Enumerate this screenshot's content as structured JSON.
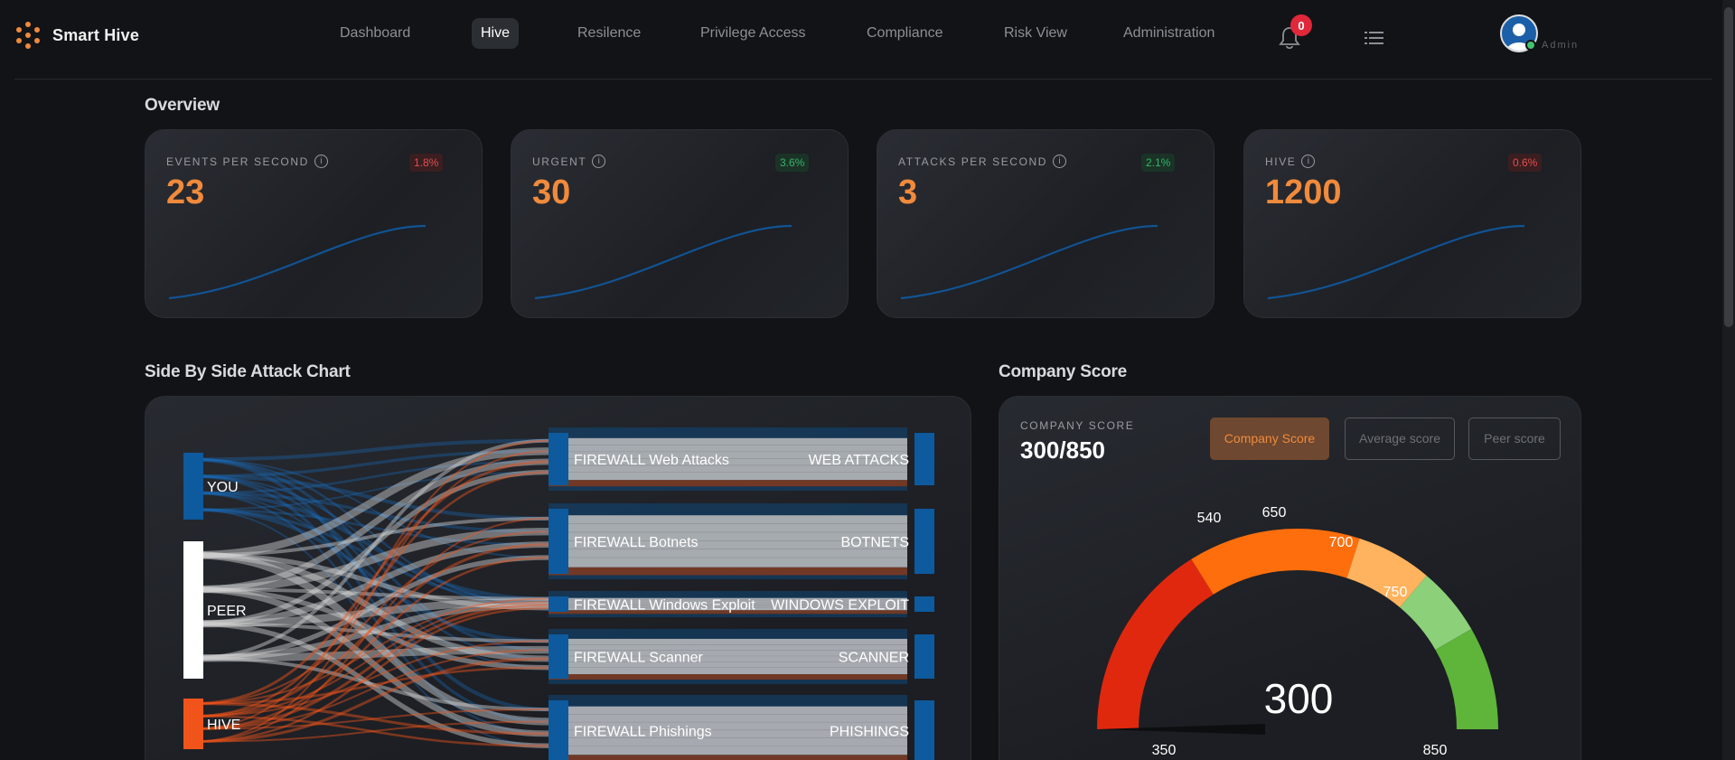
{
  "nav": {
    "brand": "Smart Hive",
    "items": [
      "Dashboard",
      "Hive",
      "Resilence",
      "Privilege Access",
      "Compliance",
      "Risk View",
      "Administration"
    ],
    "active": "Hive",
    "notification_count": "0",
    "user_role": "Admin"
  },
  "overview": {
    "title": "Overview",
    "cards": [
      {
        "label": "EVENTS PER SECOND",
        "value": "23",
        "change": "1.8%",
        "trend": "red"
      },
      {
        "label": "URGENT",
        "value": "30",
        "change": "3.6%",
        "trend": "green"
      },
      {
        "label": "ATTACKS PER SECOND",
        "value": "3",
        "change": "2.1%",
        "trend": "green"
      },
      {
        "label": "HIVE",
        "value": "1200",
        "change": "0.6%",
        "trend": "red"
      }
    ]
  },
  "attack_chart": {
    "title": "Side By Side Attack Chart",
    "sources": [
      {
        "label": "YOU",
        "color": "#0d5a9e"
      },
      {
        "label": "PEER",
        "color": "#ffffff"
      },
      {
        "label": "HIVE",
        "color": "#f1541a"
      }
    ],
    "targets": [
      {
        "left": "FIREWALL Web Attacks",
        "right": "WEB ATTACKS"
      },
      {
        "left": "FIREWALL Botnets",
        "right": "BOTNETS"
      },
      {
        "left": "FIREWALL Windows Exploit",
        "right": "WINDOWS EXPLOIT"
      },
      {
        "left": "FIREWALL Scanner",
        "right": "SCANNER"
      },
      {
        "left": "FIREWALL Phishings",
        "right": "PHISHINGS"
      }
    ]
  },
  "company_score": {
    "title": "Company Score",
    "label": "COMPANY SCORE",
    "value": "300/850",
    "buttons": [
      {
        "label": "Company Score",
        "active": true
      },
      {
        "label": "Average score",
        "active": false
      },
      {
        "label": "Peer score",
        "active": false
      }
    ],
    "gauge": {
      "current": "300",
      "min_label": "350",
      "max_label": "850",
      "tick_labels": [
        "540",
        "650",
        "700",
        "750"
      ],
      "band_colors": [
        "#e0280f",
        "#ff6e0c",
        "#ffb35e",
        "#8dd07a",
        "#5fb43a"
      ]
    }
  },
  "colors": {
    "accent": "#f08a3c",
    "background": "#121316"
  }
}
